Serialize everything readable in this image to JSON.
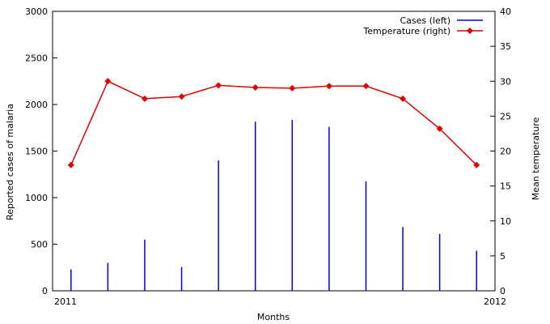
{
  "chart_data": {
    "type": "bar+line",
    "title": "",
    "xlabel": "Months",
    "ylabel_left": "Reported cases of malaria",
    "ylabel_right": "Mean temperature",
    "x_tick_labels": [
      "2011",
      "2012"
    ],
    "ylim_left": [
      0,
      3000
    ],
    "ylim_right": [
      0,
      40
    ],
    "left_ticks": [
      0,
      500,
      1000,
      1500,
      2000,
      2500,
      3000
    ],
    "right_ticks": [
      0,
      5,
      10,
      15,
      20,
      25,
      30,
      35,
      40
    ],
    "grid": false,
    "legend_position": "top-right",
    "series": [
      {
        "name": "Cases  (left)",
        "axis": "left",
        "style": "impulse",
        "color": "#0000e0",
        "values": [
          230,
          300,
          550,
          255,
          1400,
          1815,
          1835,
          1760,
          1175,
          685,
          610,
          430
        ]
      },
      {
        "name": "Temperature  (right)",
        "axis": "right",
        "style": "line-diamond",
        "color": "#e00000",
        "values": [
          18.0,
          30.0,
          27.5,
          27.8,
          29.4,
          29.1,
          29.0,
          29.3,
          29.3,
          27.5,
          23.2,
          18.0
        ]
      }
    ]
  }
}
